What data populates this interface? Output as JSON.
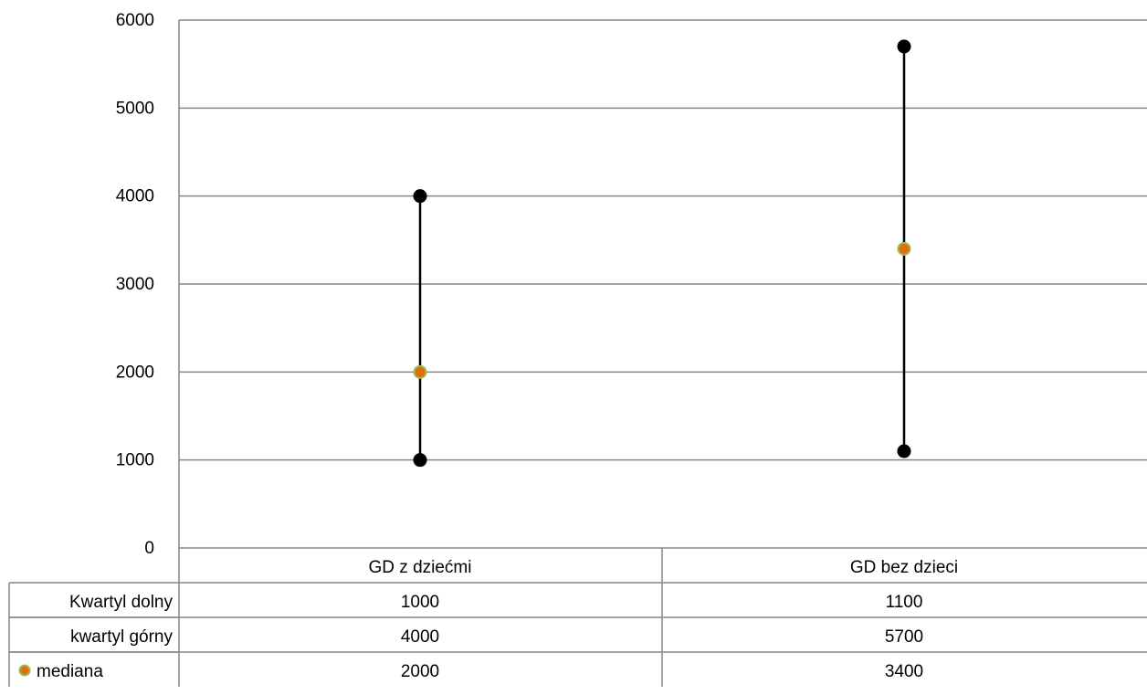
{
  "chart_data": {
    "type": "line",
    "categories": [
      "GD z dziećmi",
      "GD bez dzieci"
    ],
    "series": [
      {
        "name": "Kwartyl dolny",
        "values": [
          1000,
          1100
        ],
        "marker": "circle",
        "color": "#000000"
      },
      {
        "name": "kwartyl górny",
        "values": [
          4000,
          5700
        ],
        "marker": "circle",
        "color": "#000000"
      },
      {
        "name": "mediana",
        "values": [
          2000,
          3400
        ],
        "marker": "circle",
        "color": "#e36c0a",
        "outline": "#9bbb59"
      }
    ],
    "range_lines": "high-low (kwartyl dolny to kwartyl górny)",
    "ylim": [
      0,
      6000
    ],
    "yticks": [
      "0",
      "1000",
      "2000",
      "3000",
      "4000",
      "5000",
      "6000"
    ],
    "grid": true,
    "legend": "data-table",
    "data_table": {
      "rows": [
        {
          "label": "Kwartyl dolny",
          "values": [
            "1000",
            "1100"
          ]
        },
        {
          "label": "kwartyl górny",
          "values": [
            "4000",
            "5700"
          ]
        },
        {
          "label": "mediana",
          "values": [
            "2000",
            "3400"
          ]
        }
      ]
    }
  }
}
